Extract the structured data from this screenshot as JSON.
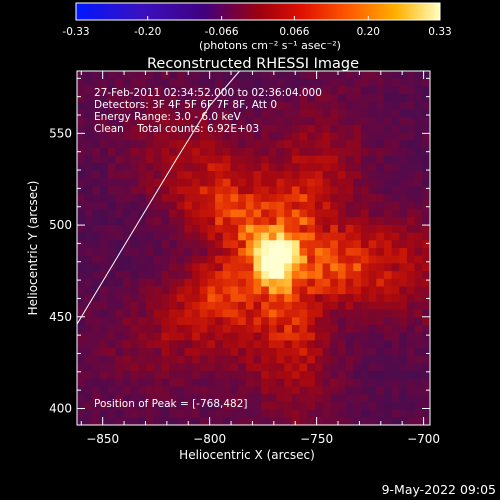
{
  "colorbar": {
    "tick_labels": [
      "-0.33",
      "-0.20",
      "-0.066",
      "0.066",
      "0.20",
      "0.33"
    ],
    "tick_values": [
      -0.33,
      -0.2,
      -0.066,
      0.066,
      0.2,
      0.33
    ],
    "range": [
      -0.33,
      0.33
    ],
    "units": "(photons cm⁻² s⁻¹ asec⁻²)"
  },
  "chart_data": {
    "type": "heatmap",
    "title": "Reconstructed RHESSI Image",
    "xlabel": "Heliocentric X (arcsec)",
    "ylabel": "Heliocentric Y (arcsec)",
    "xlim": [
      -862,
      -697
    ],
    "ylim": [
      391,
      584
    ],
    "x_ticks": [
      -850,
      -800,
      -750,
      -700
    ],
    "x_tick_labels": [
      "−850",
      "−800",
      "−750",
      "−700"
    ],
    "y_ticks": [
      400,
      450,
      500,
      550
    ],
    "y_tick_labels": [
      "400",
      "450",
      "500",
      "550"
    ],
    "peak": {
      "x": -768,
      "y": 482
    },
    "limb_curve": [
      [
        -862,
        446
      ],
      [
        -845,
        479
      ],
      [
        -830,
        508
      ],
      [
        -815,
        537
      ],
      [
        -800,
        565
      ],
      [
        -786,
        584
      ]
    ],
    "annotations": [
      "27-Feb-2011 02:34:52.000 to 02:36:04.000",
      "Detectors: 3F 4F 5F 6F 7F 8F, Att 0",
      "Energy Range: 3.0 - 6.0 keV",
      "Clean    Total counts: 6.92E+03",
      "Position of Peak = [-768,482]"
    ]
  },
  "footer": {
    "timestamp": "9-May-2022 09:05"
  }
}
